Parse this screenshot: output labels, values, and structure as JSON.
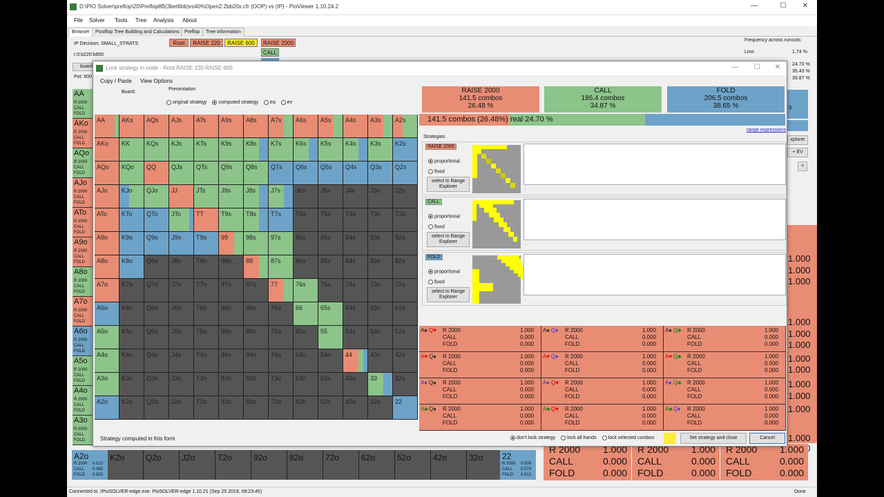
{
  "window": {
    "title": "D:\\PIO Solver\\preflop\\20\\Preflop8B(3bet6bb)vs40%Open2.2bb20x.cfr (OOP) vs (IP) - PioViewer 1.10.24.2"
  },
  "menu": [
    "File",
    "Solver",
    "Tools",
    "Tree",
    "Analysis",
    "About"
  ],
  "tabs": [
    "Browser",
    "Postflop Tree Building and Calculations",
    "Preflop",
    "Tree information"
  ],
  "info": {
    "decision": "IP Decision:  SMALL_STRATS",
    "line": "r:0:b220:b600",
    "board_btn": "board",
    "pot": "Pot: 600"
  },
  "tree": {
    "nodes": [
      "Root",
      "RAISE 220",
      "RAISE 600",
      "RAISE 2000"
    ],
    "call": "CALL"
  },
  "freq": {
    "title": "Frequency across runouts:",
    "line_label": "Line:",
    "line_val": "1.74 %",
    "v1": "24.70 %",
    "v2": "35.43 %",
    "v3": "39.87 %"
  },
  "bg_side": {
    "explorer": "xplorer",
    "ev": "+ EV",
    "lt": "<",
    "ev_text": "s"
  },
  "bg_numbers": [
    "1.000",
    "1.000",
    "1.000",
    "1.000",
    "1.000",
    "1.000",
    "1.000",
    "1.000",
    "1.000",
    "1.000",
    "1.000",
    "1.000",
    "1.000"
  ],
  "bg_bottom": {
    "cells": [
      "K2o",
      "Q2o",
      "J2o",
      "T2o",
      "92o",
      "82o",
      "72o",
      "62o",
      "52o",
      "42o",
      "32o"
    ],
    "a2o": {
      "hand": "A2o",
      "r": "R 2000",
      "rv": "0.013",
      "c": "CALL",
      "cv": "0.065",
      "f": "FOLD",
      "fv": "0.922"
    },
    "twotwo": {
      "hand": "22",
      "r": "R 2000",
      "rv": "0.009",
      "c": "CALL",
      "cv": "0.079",
      "f": "FOLD",
      "fv": "0.912"
    }
  },
  "bg_big": [
    {
      "r": "R 2000",
      "rv": "1.000",
      "c": "CALL",
      "cv": "0.000",
      "f": "FOLD",
      "fv": "0.000"
    },
    {
      "r": "R 2000",
      "rv": "1.000",
      "c": "CALL",
      "cv": "0.000",
      "f": "FOLD",
      "fv": "0.000"
    },
    {
      "r": "R 2000",
      "rv": "1.000",
      "c": "CALL",
      "cv": "0.000",
      "f": "FOLD",
      "fv": "0.000"
    }
  ],
  "bg_leftcol": [
    {
      "hand": "AA",
      "c": "C"
    },
    {
      "hand": "AKo",
      "c": "R"
    },
    {
      "hand": "AQo",
      "c": "C"
    },
    {
      "hand": "AJo",
      "c": "R"
    },
    {
      "hand": "ATo",
      "c": "R"
    },
    {
      "hand": "A9o",
      "c": "R"
    },
    {
      "hand": "A8o",
      "c": "C"
    },
    {
      "hand": "A7o",
      "c": "R"
    },
    {
      "hand": "A6o",
      "c": "F"
    },
    {
      "hand": "A5o",
      "c": "C"
    },
    {
      "hand": "A4o",
      "c": "C"
    },
    {
      "hand": "A3o",
      "c": "C"
    }
  ],
  "bg_leftsub": [
    "R 2000",
    "CALL",
    "FOLD"
  ],
  "status": {
    "left": "Connected to .\\PioSOLVER-edge.exe. PioSOLVER-edge 1.10.21 (Sep 25 2019, 09:23:45)",
    "right": "Done"
  },
  "dialog": {
    "title": "Lock strategy in node - Root RAISE 220 RAISE 600",
    "menu": [
      "Copy / Paste",
      "View Options"
    ],
    "board_label": "Board:",
    "presentation": {
      "title": "Presentation",
      "options": [
        "original strategy",
        "computed strategy",
        "eq",
        "ev"
      ],
      "selected": 1
    },
    "actions": [
      {
        "name": "RAISE 2000",
        "combos": "141.5 combos",
        "pct": "26.48 %",
        "color": "R"
      },
      {
        "name": "CALL",
        "combos": "186.4 combos",
        "pct": "34.87 %",
        "color": "C"
      },
      {
        "name": "FOLD",
        "combos": "206.5 combos",
        "pct": "38.65 %",
        "color": "F"
      }
    ],
    "selbar": {
      "text": "141.5 combos (26.48%) real  24.70 %",
      "fill": 0.4
    },
    "range_link": "range expressions",
    "strategies_label": "Strategies",
    "strategy_boxes": [
      {
        "label": "RAISE 2000",
        "color": "R",
        "opt1": "proportional",
        "opt2": "fixed",
        "btn": "select in Range Explorer",
        "dot": "."
      },
      {
        "label": "CALL",
        "color": "C",
        "opt1": "proportional",
        "opt2": "fixed",
        "btn": "select in Range Explorer",
        "dot": "."
      },
      {
        "label": "FOLD",
        "color": "F",
        "opt1": "proportional",
        "opt2": "fixed",
        "btn": "select in Range Explorer",
        "dot": "."
      }
    ],
    "combos": [
      {
        "r1": "A♠",
        "r2": "Q♥",
        "c1": "#222",
        "c2": "#d00"
      },
      {
        "r1": "A♠",
        "r2": "Q♦",
        "c1": "#222",
        "c2": "#33c"
      },
      {
        "r1": "A♠",
        "r2": "Q♣",
        "c1": "#222",
        "c2": "#080"
      },
      {
        "r1": "A♥",
        "r2": "Q♠",
        "c1": "#d00",
        "c2": "#222"
      },
      {
        "r1": "A♥",
        "r2": "Q♦",
        "c1": "#d00",
        "c2": "#33c"
      },
      {
        "r1": "A♥",
        "r2": "Q♣",
        "c1": "#d00",
        "c2": "#080"
      },
      {
        "r1": "A♦",
        "r2": "Q♠",
        "c1": "#33c",
        "c2": "#222"
      },
      {
        "r1": "A♦",
        "r2": "Q♥",
        "c1": "#33c",
        "c2": "#d00"
      },
      {
        "r1": "A♦",
        "r2": "Q♣",
        "c1": "#33c",
        "c2": "#080"
      },
      {
        "r1": "A♣",
        "r2": "Q♠",
        "c1": "#080",
        "c2": "#222"
      },
      {
        "r1": "A♣",
        "r2": "Q♥",
        "c1": "#080",
        "c2": "#d00"
      },
      {
        "r1": "A♣",
        "r2": "Q♦",
        "c1": "#080",
        "c2": "#33c"
      }
    ],
    "combo_rows": {
      "r": "R 2000",
      "c": "CALL",
      "f": "FOLD",
      "rv": "1.000",
      "cv": "0.000",
      "fv": "0.000"
    },
    "footer": {
      "left": "Strategy computed in this form",
      "lock_options": [
        "don't lock strategy",
        "lock all hands",
        "lock selected combos"
      ],
      "set_btn": "Set strategy and close",
      "cancel_btn": "Cancel"
    },
    "grid_hands": [
      [
        "AA",
        "AKs",
        "AQs",
        "AJs",
        "ATs",
        "A9s",
        "A8s",
        "A7s",
        "A6s",
        "A5s",
        "A4s",
        "A3s",
        "A2s"
      ],
      [
        "AKo",
        "KK",
        "KQs",
        "KJs",
        "KTs",
        "K9s",
        "K8s",
        "K7s",
        "K6s",
        "K5s",
        "K4s",
        "K3s",
        "K2s"
      ],
      [
        "AQo",
        "KQo",
        "QQ",
        "QJs",
        "QTs",
        "Q9s",
        "Q8s",
        "Q7s",
        "Q6s",
        "Q5s",
        "Q4s",
        "Q3s",
        "Q2s"
      ],
      [
        "AJo",
        "KJo",
        "QJo",
        "JJ",
        "JTs",
        "J9s",
        "J8s",
        "J7s",
        "J6s",
        "J5s",
        "J4s",
        "J3s",
        "J2s"
      ],
      [
        "ATo",
        "KTo",
        "QTo",
        "JTo",
        "TT",
        "T9s",
        "T8s",
        "T7s",
        "T6s",
        "T5s",
        "T4s",
        "T3s",
        "T2s"
      ],
      [
        "A9o",
        "K9o",
        "Q9o",
        "J9o",
        "T9o",
        "99",
        "98s",
        "97s",
        "96s",
        "95s",
        "94s",
        "93s",
        "92s"
      ],
      [
        "A8o",
        "K8o",
        "Q8o",
        "J8o",
        "T8o",
        "98o",
        "88",
        "87s",
        "86s",
        "85s",
        "84s",
        "83s",
        "82s"
      ],
      [
        "A7o",
        "K7o",
        "Q7o",
        "J7o",
        "T7o",
        "97o",
        "87o",
        "77",
        "76s",
        "75s",
        "74s",
        "73s",
        "72s"
      ],
      [
        "A6o",
        "K6o",
        "Q6o",
        "J6o",
        "T6o",
        "96o",
        "86o",
        "76o",
        "66",
        "65s",
        "64s",
        "63s",
        "62s"
      ],
      [
        "A5o",
        "K5o",
        "Q5o",
        "J5o",
        "T5o",
        "95o",
        "85o",
        "75o",
        "65o",
        "55",
        "54s",
        "53s",
        "52s"
      ],
      [
        "A4o",
        "K4o",
        "Q4o",
        "J4o",
        "T4o",
        "94o",
        "84o",
        "74o",
        "64o",
        "54o",
        "44",
        "43s",
        "42s"
      ],
      [
        "A3o",
        "K3o",
        "Q3o",
        "J3o",
        "T3o",
        "93o",
        "83o",
        "73o",
        "63o",
        "53o",
        "43o",
        "33",
        "32s"
      ],
      [
        "A2o",
        "K2o",
        "Q2o",
        "J2o",
        "T2o",
        "92o",
        "82o",
        "72o",
        "62o",
        "52o",
        "42o",
        "32o",
        "22"
      ]
    ],
    "grid_strats": [
      [
        "RRRRRRRRCC",
        "RRRRRRRRRR",
        "RRRRRRRRRR",
        "RRRRRRRRRR",
        "RRRRRRRRRR",
        "RRRRRRRRRR",
        "RRRRRRRRRR",
        "RRRRRRCCCC",
        "RRRRRRRRRR",
        "RRRRRRCCCC",
        "RRRRRRRRRR",
        "RRRRRRCCCC",
        "RRRRCCCCCC"
      ],
      [
        "RRRRRRRRRR",
        "CCCCCCCCCC",
        "CCCCCCCCCC",
        "CCCCCCCCCC",
        "CCCCCCCCCC",
        "CCCCCCCCCC",
        "CCCCCCFFFF",
        "CCCCCCCCCC",
        "CCCCCCFFFF",
        "CCCCCCCCCC",
        "CCCCCCFFFF",
        "CCCCCCCCCC",
        "FFFFFFFFFF"
      ],
      [
        "RRRRRRRRRR",
        "CCCCCCCCCC",
        "RRRRRRRRRR",
        "CCCCCCCCCC",
        "CCCCCCCCCC",
        "CCCCCCCCCC",
        "CCCCCCCCCC",
        "FFFFFFFFFF",
        "FFFFFFFFFF",
        "FFFFFFFFFF",
        "FFFFFFFFFF",
        "FFFFFFFFFF",
        "FFFFFFFFFF"
      ],
      [
        "RRRRRRRRRR",
        "FFFFCCCCCC",
        "CCCCCCCCCC",
        "RRRRRRRRRR",
        "CCCCCCCCCC",
        "CCCCCCCCCC",
        "CCCCCCFFFF",
        "CCCCCCFFFF",
        "NNNNNNNNNN",
        "NNNNNNNNNN",
        "NNNNNNNNNN",
        "NNNNNNNNNN",
        "NNNNNNNNNN"
      ],
      [
        "RRRRRRRRRR",
        "FFFFFFFFFF",
        "FFFFFFFFFF",
        "CCCCCCCCFF",
        "RRRRRRRRRR",
        "CCCCCCCCCC",
        "CCCCCCFFFF",
        "FFFFFFFFFF",
        "NNNNNNNNNN",
        "NNNNNNNNNN",
        "NNNNNNNNNN",
        "NNNNNNNNNN",
        "NNNNNNNNNN"
      ],
      [
        "RRRRRRRRRR",
        "FFFFFFFFFF",
        "FFFFFFFFFF",
        "FFFFFFFFFF",
        "FFFFFFFFFF",
        "RRRRRRCCCC",
        "CCCCCCCCCC",
        "CCCCCCCCCC",
        "NNNNNNNNNN",
        "NNNNNNNNNN",
        "NNNNNNNNNN",
        "NNNNNNNNNN",
        "NNNNNNNNNN"
      ],
      [
        "RRRRRRRRRR",
        "FFFFFFFFFF",
        "NNNNNNNNNN",
        "NNNNNNNNNN",
        "NNNNNNNNNN",
        "NNNNNNNNNN",
        "RRRRRRCCCC",
        "CCCCCCCCCC",
        "NNNNNNNNNN",
        "NNNNNNNNNN",
        "NNNNNNNNNN",
        "NNNNNNNNNN",
        "NNNNNNNNNN"
      ],
      [
        "RRRRRRRRRR",
        "NNNNNNNNNN",
        "NNNNNNNNNN",
        "NNNNNNNNNN",
        "NNNNNNNNNN",
        "NNNNNNNNNN",
        "NNNNNNNNNN",
        "RRRRRRCCCC",
        "CCCCCCCCCC",
        "NNNNNNNNNN",
        "NNNNNNNNNN",
        "NNNNNNNNNN",
        "NNNNNNNNNN"
      ],
      [
        "FFFFFFFFFF",
        "NNNNNNNNNN",
        "NNNNNNNNNN",
        "NNNNNNNNNN",
        "NNNNNNNNNN",
        "NNNNNNNNNN",
        "NNNNNNNNNN",
        "NNNNNNNNNN",
        "CCCCCCCCCC",
        "CCCCCCCCCC",
        "NNNNNNNNNN",
        "NNNNNNNNNN",
        "NNNNNNNNNN"
      ],
      [
        "CCCCCCCCCC",
        "NNNNNNNNNN",
        "NNNNNNNNNN",
        "NNNNNNNNNN",
        "NNNNNNNNNN",
        "NNNNNNNNNN",
        "NNNNNNNNNN",
        "NNNNNNNNNN",
        "NNNNNNNNNN",
        "CCCCCCCCCC",
        "NNNNNNNNNN",
        "NNNNNNNNNN",
        "NNNNNNNNNN"
      ],
      [
        "CCCCCCCCCC",
        "NNNNNNNNNN",
        "NNNNNNNNNN",
        "NNNNNNNNNN",
        "NNNNNNNNNN",
        "NNNNNNNNNN",
        "NNNNNNNNNN",
        "NNNNNNNNNN",
        "NNNNNNNNNN",
        "NNNNNNNNNN",
        "RRRRRRCCFF",
        "NNNNNNNNNN",
        "NNNNNNNNNN"
      ],
      [
        "CCCCCCCCCC",
        "NNNNNNNNNN",
        "NNNNNNNNNN",
        "NNNNNNNNNN",
        "NNNNNNNNNN",
        "NNNNNNNNNN",
        "NNNNNNNNNN",
        "NNNNNNNNNN",
        "NNNNNNNNNN",
        "NNNNNNNNNN",
        "NNNNNNNNNN",
        "CCCCCCFFFF",
        "NNNNNNNNNN"
      ],
      [
        "FFFFFFFFFF",
        "NNNNNNNNNN",
        "NNNNNNNNNN",
        "NNNNNNNNNN",
        "NNNNNNNNNN",
        "NNNNNNNNNN",
        "NNNNNNNNNN",
        "NNNNNNNNNN",
        "NNNNNNNNNN",
        "NNNNNNNNNN",
        "NNNNNNNNNN",
        "NNNNNNNNNN",
        "FFFFFFFFFF"
      ]
    ]
  }
}
